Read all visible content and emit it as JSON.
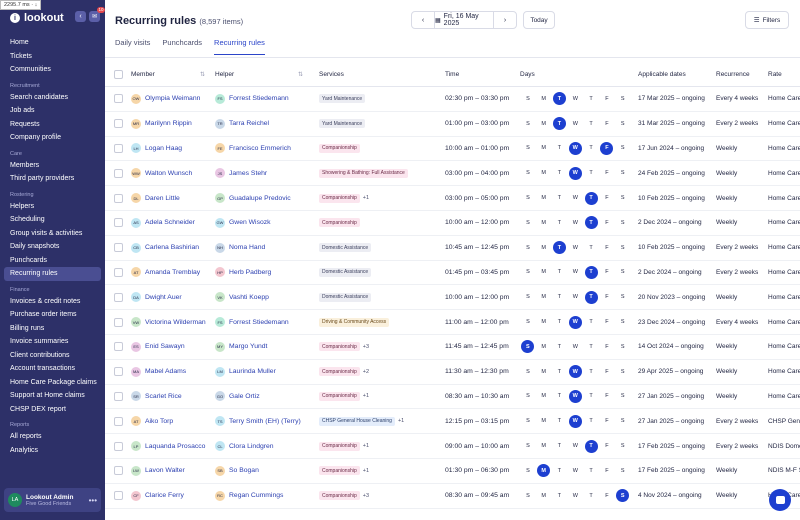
{
  "browser": {
    "dimension_badge": "2295.7 ms · ↓"
  },
  "sidebar": {
    "brand": "lookout",
    "inbox_count": "10",
    "nav": [
      {
        "type": "item",
        "label": "Home"
      },
      {
        "type": "item",
        "label": "Tickets"
      },
      {
        "type": "item",
        "label": "Communities"
      },
      {
        "type": "section",
        "label": "Recruitment"
      },
      {
        "type": "item",
        "label": "Search candidates"
      },
      {
        "type": "item",
        "label": "Job ads"
      },
      {
        "type": "item",
        "label": "Requests"
      },
      {
        "type": "item",
        "label": "Company profile"
      },
      {
        "type": "section",
        "label": "Care"
      },
      {
        "type": "item",
        "label": "Members"
      },
      {
        "type": "item",
        "label": "Third party providers"
      },
      {
        "type": "section",
        "label": "Rostering"
      },
      {
        "type": "item",
        "label": "Helpers"
      },
      {
        "type": "item",
        "label": "Scheduling"
      },
      {
        "type": "item",
        "label": "Group visits & activities"
      },
      {
        "type": "item",
        "label": "Daily snapshots"
      },
      {
        "type": "item",
        "label": "Punchcards"
      },
      {
        "type": "item",
        "label": "Recurring rules",
        "active": true
      },
      {
        "type": "section",
        "label": "Finance"
      },
      {
        "type": "item",
        "label": "Invoices & credit notes"
      },
      {
        "type": "item",
        "label": "Purchase order items"
      },
      {
        "type": "item",
        "label": "Billing runs"
      },
      {
        "type": "item",
        "label": "Invoice summaries"
      },
      {
        "type": "item",
        "label": "Client contributions"
      },
      {
        "type": "item",
        "label": "Account transactions"
      },
      {
        "type": "item",
        "label": "Home Care Package claims"
      },
      {
        "type": "item",
        "label": "Support at Home claims"
      },
      {
        "type": "item",
        "label": "CHSP DEX report"
      },
      {
        "type": "section",
        "label": "Reports"
      },
      {
        "type": "item",
        "label": "All reports"
      },
      {
        "type": "item",
        "label": "Analytics"
      }
    ],
    "user": {
      "initials": "LA",
      "name": "Lookout Admin",
      "org": "Five Good Friends"
    }
  },
  "header": {
    "title": "Recurring rules",
    "count": "(8,597 items)",
    "date": "Fri, 16 May 2025",
    "today": "Today",
    "filters": "Filters"
  },
  "tabs": [
    "Daily visits",
    "Punchcards",
    "Recurring rules"
  ],
  "columns": {
    "member": "Member",
    "helper": "Helper",
    "services": "Services",
    "time": "Time",
    "days": "Days",
    "applicable": "Applicable dates",
    "recurrence": "Recurrence",
    "rate": "Rate"
  },
  "day_letters": [
    "S",
    "M",
    "T",
    "W",
    "T",
    "F",
    "S"
  ],
  "rows": [
    {
      "m_init": "OW",
      "member": "Olympia Weimann",
      "m_color": "#f6d6a8",
      "h_init": "FS",
      "helper": "Forrest Stiedemann",
      "h_color": "#b7ead8",
      "service": "Yard Maintenance",
      "tag": "grey",
      "extra": "",
      "time": "02:30 pm – 03:30 pm",
      "days": [
        2
      ],
      "applicable": "17 Mar 2025 – ongoing",
      "recurrence": "Every 4 weeks",
      "rate": "Home Care"
    },
    {
      "m_init": "MR",
      "member": "Marilynn Rippin",
      "m_color": "#f6d6a8",
      "h_init": "TR",
      "helper": "Tarra Reichel",
      "h_color": "#c9d8e8",
      "service": "Yard Maintenance",
      "tag": "grey",
      "extra": "",
      "time": "01:00 pm – 03:00 pm",
      "days": [
        2
      ],
      "applicable": "31 Mar 2025 – ongoing",
      "recurrence": "Every 2 weeks",
      "rate": "Home Care"
    },
    {
      "m_init": "LH",
      "member": "Logan Haag",
      "m_color": "#bfe6f3",
      "h_init": "FE",
      "helper": "Francisco Emmerich",
      "h_color": "#f6d6a8",
      "service": "Companionship",
      "tag": "pink",
      "extra": "",
      "time": "10:00 am – 01:00 pm",
      "days": [
        3,
        5
      ],
      "applicable": "17 Jun 2024 – ongoing",
      "recurrence": "Weekly",
      "rate": "Home Care"
    },
    {
      "m_init": "WW",
      "member": "Walton Wunsch",
      "m_color": "#f6d6a8",
      "h_init": "JS",
      "helper": "James Stehr",
      "h_color": "#e9c6e3",
      "service": "Showering & Bathing: Full Assistance",
      "tag": "pink",
      "extra": "",
      "time": "03:00 pm – 04:00 pm",
      "days": [
        3
      ],
      "applicable": "24 Feb 2025 – ongoing",
      "recurrence": "Weekly",
      "rate": "Home Care"
    },
    {
      "m_init": "DL",
      "member": "Daren Little",
      "m_color": "#f6d6a8",
      "h_init": "GP",
      "helper": "Guadalupe Predovic",
      "h_color": "#c8e6c9",
      "service": "Companionship",
      "tag": "pink",
      "extra": "+1",
      "time": "03:00 pm – 05:00 pm",
      "days": [
        4
      ],
      "applicable": "10 Feb 2025 – ongoing",
      "recurrence": "Weekly",
      "rate": "Home Care"
    },
    {
      "m_init": "AS",
      "member": "Adela Schneider",
      "m_color": "#bfe6f3",
      "h_init": "GW",
      "helper": "Gwen Wisozk",
      "h_color": "#bfe6f3",
      "service": "Companionship",
      "tag": "pink",
      "extra": "",
      "time": "10:00 am – 12:00 pm",
      "days": [
        4
      ],
      "applicable": "2 Dec 2024 – ongoing",
      "recurrence": "Weekly",
      "rate": "Home Care"
    },
    {
      "m_init": "CB",
      "member": "Carlena Bashirian",
      "m_color": "#bfe6f3",
      "h_init": "NH",
      "helper": "Noma Hand",
      "h_color": "#c9d8e8",
      "service": "Domestic Assistance",
      "tag": "grey",
      "extra": "",
      "time": "10:45 am – 12:45 pm",
      "days": [
        2
      ],
      "applicable": "10 Feb 2025 – ongoing",
      "recurrence": "Every 2 weeks",
      "rate": "Home Care"
    },
    {
      "m_init": "AT",
      "member": "Amanda Tremblay",
      "m_color": "#f6d6a8",
      "h_init": "HP",
      "helper": "Herb Padberg",
      "h_color": "#f3c6cf",
      "service": "Domestic Assistance",
      "tag": "grey",
      "extra": "",
      "time": "01:45 pm – 03:45 pm",
      "days": [
        4
      ],
      "applicable": "2 Dec 2024 – ongoing",
      "recurrence": "Every 2 weeks",
      "rate": "Home Care"
    },
    {
      "m_init": "DA",
      "member": "Dwight Auer",
      "m_color": "#bfe6f3",
      "h_init": "VK",
      "helper": "Vashti Koepp",
      "h_color": "#c8e6c9",
      "service": "Domestic Assistance",
      "tag": "grey",
      "extra": "",
      "time": "10:00 am – 12:00 pm",
      "days": [
        4
      ],
      "applicable": "20 Nov 2023 – ongoing",
      "recurrence": "Weekly",
      "rate": "Home Care"
    },
    {
      "m_init": "VW",
      "member": "Victorina Wilderman",
      "m_color": "#c8e6c9",
      "h_init": "FS",
      "helper": "Forrest Stiedemann",
      "h_color": "#b7ead8",
      "service": "Driving & Community Access",
      "tag": "beige",
      "extra": "",
      "time": "11:00 am – 12:00 pm",
      "days": [
        3
      ],
      "applicable": "23 Dec 2024 – ongoing",
      "recurrence": "Every 4 weeks",
      "rate": "Home Care"
    },
    {
      "m_init": "ES",
      "member": "Enid Sawayn",
      "m_color": "#e9c6e3",
      "h_init": "MY",
      "helper": "Margo Yundt",
      "h_color": "#c8e6c9",
      "service": "Companionship",
      "tag": "pink",
      "extra": "+3",
      "time": "11:45 am – 12:45 pm",
      "days": [
        0
      ],
      "applicable": "14 Oct 2024 – ongoing",
      "recurrence": "Weekly",
      "rate": "Home Care"
    },
    {
      "m_init": "MA",
      "member": "Mabel Adams",
      "m_color": "#e9c6e3",
      "h_init": "LM",
      "helper": "Laurinda Muller",
      "h_color": "#bfe6f3",
      "service": "Companionship",
      "tag": "pink",
      "extra": "+2",
      "time": "11:30 am – 12:30 pm",
      "days": [
        3
      ],
      "applicable": "29 Apr 2025 – ongoing",
      "recurrence": "Weekly",
      "rate": "Home Care"
    },
    {
      "m_init": "SR",
      "member": "Scarlet Rice",
      "m_color": "#c9d8e8",
      "h_init": "GO",
      "helper": "Gale Ortiz",
      "h_color": "#c9d8e8",
      "service": "Companionship",
      "tag": "pink",
      "extra": "+1",
      "time": "08:30 am – 10:30 am",
      "days": [
        3
      ],
      "applicable": "27 Jan 2025 – ongoing",
      "recurrence": "Weekly",
      "rate": "Home Care"
    },
    {
      "m_init": "AT",
      "member": "Aiko Torp",
      "m_color": "#f6d6a8",
      "h_init": "TS",
      "helper": "Terry Smith (EH) (Terry)",
      "h_color": "#bfe6f3",
      "service": "CHSP General House Cleaning",
      "tag": "blue",
      "extra": "+1",
      "time": "12:15 pm – 03:15 pm",
      "days": [
        3
      ],
      "applicable": "27 Jan 2025 – ongoing",
      "recurrence": "Every 2 weeks",
      "rate": "CHSP Gen"
    },
    {
      "m_init": "LP",
      "member": "Laquanda Prosacco",
      "m_color": "#c8e6c9",
      "h_init": "CL",
      "helper": "Clora Lindgren",
      "h_color": "#bfe6f3",
      "service": "Companionship",
      "tag": "pink",
      "extra": "+1",
      "time": "09:00 am – 10:00 am",
      "days": [
        4
      ],
      "applicable": "17 Feb 2025 – ongoing",
      "recurrence": "Every 2 weeks",
      "rate": "NDIS Dome"
    },
    {
      "m_init": "LW",
      "member": "Lavon Walter",
      "m_color": "#c8e6c9",
      "h_init": "SB",
      "helper": "So Bogan",
      "h_color": "#f6d6a8",
      "service": "Companionship",
      "tag": "pink",
      "extra": "+1",
      "time": "01:30 pm – 06:30 pm",
      "days": [
        1
      ],
      "applicable": "17 Feb 2025 – ongoing",
      "recurrence": "Weekly",
      "rate": "NDIS M-F S"
    },
    {
      "m_init": "CF",
      "member": "Clarice Ferry",
      "m_color": "#f3c6cf",
      "h_init": "RC",
      "helper": "Regan Cummings",
      "h_color": "#f6d6a8",
      "service": "Companionship",
      "tag": "pink",
      "extra": "+3",
      "time": "08:30 am – 09:45 am",
      "days": [
        6
      ],
      "applicable": "4 Nov 2024 – ongoing",
      "recurrence": "Weekly",
      "rate": "Home Care"
    }
  ]
}
